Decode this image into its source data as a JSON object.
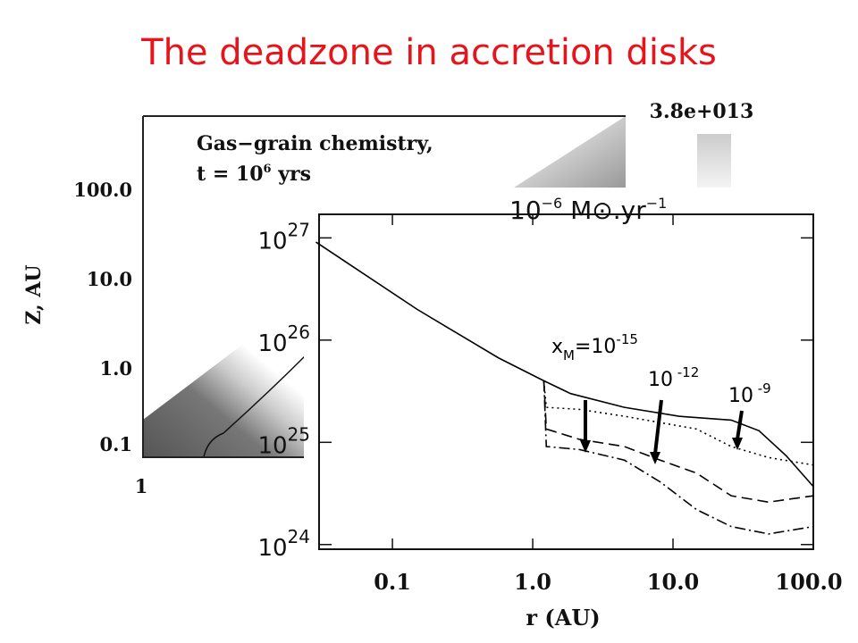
{
  "title": "The deadzone in accretion disks",
  "background_chart": {
    "title_lines": [
      "Gas−grain chemistry,",
      [
        "t = 10",
        "6",
        " yrs"
      ]
    ],
    "ylabel": "Z, AU",
    "yticks": [
      "100.0",
      "10.0",
      "1.0",
      "0.1"
    ],
    "xticks": [
      "1"
    ],
    "colorbar_label": "3.8e+013"
  },
  "chart_data": {
    "type": "line",
    "subtitle": [
      "10",
      "−6",
      "  M⊙.yr",
      "−1"
    ],
    "xlabel": "r (AU)",
    "log_x": true,
    "log_y": true,
    "xlim": [
      0.03,
      100
    ],
    "ylim": [
      9e+23,
      1.7e+27
    ],
    "xticks": [
      0.1,
      {
        "value": 1,
        "label": "1.0"
      },
      {
        "value": 10,
        "label": "10.0"
      },
      {
        "value": 100,
        "label": "100.0"
      }
    ],
    "yticks": [
      {
        "value": 1e+24,
        "label": [
          "10",
          "24"
        ]
      },
      {
        "value": 1e+25,
        "label": [
          "10",
          "25"
        ]
      },
      {
        "value": 1e+26,
        "label": [
          "10",
          "26"
        ]
      },
      {
        "value": 1e+27,
        "label": [
          "10",
          "27"
        ]
      }
    ],
    "series": [
      {
        "style": "solid",
        "color": "#000000",
        "x": [
          0.0285,
          0.15,
          0.57,
          1.2,
          1.86,
          4.5,
          11,
          26,
          41,
          64,
          100
        ],
        "values": [
          9.1e+26,
          2e+26,
          6.7e+25,
          4e+25,
          3e+25,
          2.2e+25,
          1.8e+25,
          1.65e+25,
          1.3e+25,
          7.4e+24,
          3.7e+24
        ]
      },
      {
        "style": "dotted",
        "color": "#000000",
        "x": [
          1.2,
          1.25,
          2.15,
          4.5,
          14.7,
          26,
          48,
          100
        ],
        "values": [
          4e+25,
          2.2e+25,
          2.1e+25,
          1.8e+25,
          1.35e+25,
          9.1e+24,
          7.1e+24,
          6e+24
        ]
      },
      {
        "style": "dashed",
        "color": "#000000",
        "x": [
          1.2,
          1.25,
          2.15,
          4.5,
          8.1,
          14.7,
          26,
          48,
          100
        ],
        "values": [
          4e+25,
          1.35e+25,
          1.07e+25,
          9.1e+24,
          6.7e+24,
          5e+24,
          3e+24,
          2.6e+24,
          3e+24
        ]
      },
      {
        "style": "dashdot",
        "color": "#000000",
        "x": [
          1.2,
          1.25,
          2.15,
          4.5,
          8.1,
          14.7,
          26,
          48,
          100
        ],
        "values": [
          4e+25,
          9.1e+24,
          8.5e+24,
          6.7e+24,
          4.1e+24,
          2.2e+24,
          1.5e+24,
          1.27e+24,
          1.5e+24
        ]
      }
    ],
    "annotations": [
      [
        "x",
        "M",
        "=10",
        "-15"
      ],
      [
        "10",
        " -12"
      ],
      [
        "10",
        " -9"
      ]
    ]
  }
}
